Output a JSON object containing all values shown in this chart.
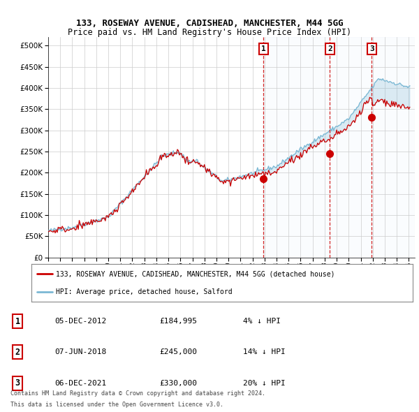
{
  "title1": "133, ROSEWAY AVENUE, CADISHEAD, MANCHESTER, M44 5GG",
  "title2": "Price paid vs. HM Land Registry's House Price Index (HPI)",
  "xlim_start": 1995.0,
  "xlim_end": 2025.5,
  "ylim": [
    0,
    520000
  ],
  "sale_dates": [
    2012.92,
    2018.44,
    2021.92
  ],
  "sale_prices": [
    184995,
    245000,
    330000
  ],
  "sale_labels": [
    "1",
    "2",
    "3"
  ],
  "legend_property": "133, ROSEWAY AVENUE, CADISHEAD, MANCHESTER, M44 5GG (detached house)",
  "legend_hpi": "HPI: Average price, detached house, Salford",
  "table_data": [
    {
      "num": "1",
      "date": "05-DEC-2012",
      "price": "£184,995",
      "pct": "4% ↓ HPI"
    },
    {
      "num": "2",
      "date": "07-JUN-2018",
      "price": "£245,000",
      "pct": "14% ↓ HPI"
    },
    {
      "num": "3",
      "date": "06-DEC-2021",
      "price": "£330,000",
      "pct": "20% ↓ HPI"
    }
  ],
  "footnote1": "Contains HM Land Registry data © Crown copyright and database right 2024.",
  "footnote2": "This data is licensed under the Open Government Licence v3.0.",
  "color_red": "#cc0000",
  "color_blue": "#7bb8d4",
  "color_fill": "#d6eaf8",
  "background_color": "#ffffff",
  "grid_color": "#cccccc"
}
